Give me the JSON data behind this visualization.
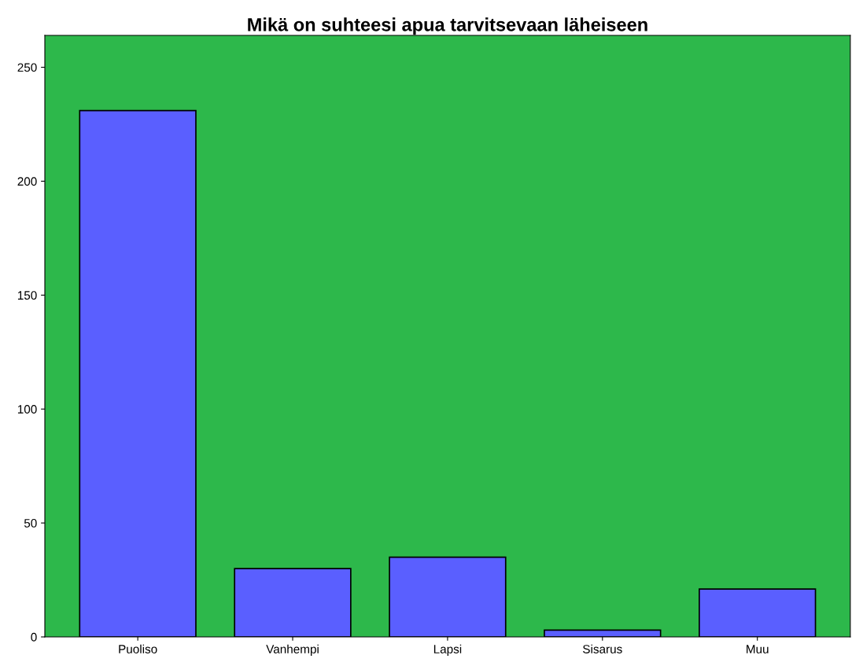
{
  "chart_data": {
    "type": "bar",
    "title": "Mikä on suhteesi apua tarvitsevaan läheiseen",
    "categories": [
      "Puoliso",
      "Vanhempi",
      "Lapsi",
      "Sisarus",
      "Muu"
    ],
    "values": [
      231,
      30,
      35,
      3,
      21
    ],
    "color": "#5a5fff",
    "ylim": [
      0,
      264
    ],
    "yticks": [
      0,
      50,
      100,
      150,
      200,
      250
    ],
    "grid": false
  }
}
